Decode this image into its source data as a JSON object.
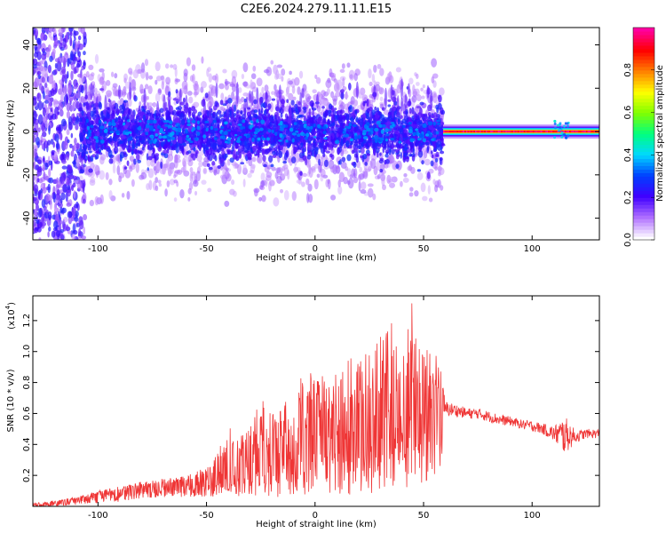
{
  "title": "C2E6.2024.279.11.11.E15",
  "chart_data": [
    {
      "type": "heatmap",
      "name": "spectrogram",
      "xlabel": "Height of straight line (km)",
      "ylabel": "Frequency (Hz)",
      "xlim": [
        -130,
        131
      ],
      "ylim": [
        -50,
        48
      ],
      "x_ticks": [
        -100,
        -50,
        0,
        50,
        100
      ],
      "y_ticks": [
        -40,
        -20,
        0,
        20,
        40
      ],
      "grid": false,
      "description_of_field": [
        {
          "x_range": [
            -130,
            -108
          ],
          "freq_range": [
            -50,
            48
          ],
          "level": 0.2,
          "pattern": "scattered speckle"
        },
        {
          "x_range": [
            -108,
            59
          ],
          "freq_range": [
            -20,
            20
          ],
          "level": 0.2,
          "pattern": "dense band, peaks up to 0.35 near 0 Hz"
        },
        {
          "x_range": [
            59,
            131
          ],
          "freq_range": [
            -3,
            3
          ],
          "level": 1.0,
          "pattern": "narrow line at 0 Hz"
        }
      ],
      "colorbar": {
        "label": "Normalized spectral amplitude",
        "range": [
          0,
          1
        ],
        "ticks": [
          "0.0",
          "0.2",
          "0.4",
          "0.6",
          "0.8"
        ],
        "colors": [
          "#ffffff",
          "#b070ff",
          "#4000ff",
          "#0040ff",
          "#00d8ff",
          "#00ff80",
          "#80ff00",
          "#ffff00",
          "#ff8000",
          "#ff0000",
          "#ff00a0"
        ]
      }
    },
    {
      "type": "line",
      "name": "snr",
      "xlabel": "Height of straight line (km)",
      "ylabel": "SNR (10 * v/v)",
      "y_multiplier": "(x10",
      "y_multiplier_exp": "4",
      "y_multiplier_close": ")",
      "xlim": [
        -130,
        131
      ],
      "ylim": [
        0,
        1.36
      ],
      "x_ticks": [
        -100,
        -50,
        0,
        50,
        100
      ],
      "y_ticks": [
        "0.2",
        "0.4",
        "0.6",
        "0.8",
        "1.0",
        "1.2"
      ],
      "color": "#ef3535",
      "series": [
        {
          "x": [
            -130,
            -120,
            -110,
            -100,
            -90,
            -80,
            -70,
            -60,
            -50,
            -45,
            -40,
            -35,
            -30,
            -25,
            -20,
            -15,
            -10,
            -5,
            0,
            5,
            10,
            15,
            20,
            25,
            30,
            35,
            40,
            45,
            50,
            55,
            58,
            60,
            65,
            70,
            75,
            80,
            85,
            90,
            95,
            100,
            105,
            110,
            115,
            120,
            125,
            131
          ],
          "y": [
            0.01,
            0.02,
            0.04,
            0.07,
            0.09,
            0.12,
            0.13,
            0.14,
            0.17,
            0.2,
            0.22,
            0.23,
            0.26,
            0.29,
            0.3,
            0.32,
            0.35,
            0.4,
            0.45,
            0.46,
            0.5,
            0.48,
            0.52,
            0.55,
            0.57,
            0.58,
            0.6,
            0.62,
            0.6,
            0.59,
            0.58,
            0.63,
            0.62,
            0.6,
            0.6,
            0.58,
            0.56,
            0.55,
            0.53,
            0.52,
            0.5,
            0.47,
            0.46,
            0.45,
            0.47,
            0.47
          ],
          "upper_envelope": [
            0.02,
            0.04,
            0.06,
            0.1,
            0.13,
            0.16,
            0.18,
            0.2,
            0.25,
            0.38,
            0.55,
            0.45,
            0.5,
            0.7,
            0.6,
            0.65,
            0.78,
            0.85,
            0.88,
            0.85,
            0.9,
            0.95,
            0.98,
            1.05,
            1.12,
            1.2,
            1.1,
            1.35,
            1.0,
            1.05,
            0.9,
            0.68,
            0.66,
            0.64,
            0.63,
            0.62,
            0.6,
            0.58,
            0.56,
            0.55,
            0.53,
            0.52,
            0.6,
            0.5,
            0.5,
            0.5
          ],
          "lower_envelope": [
            0.0,
            0.0,
            0.01,
            0.02,
            0.03,
            0.05,
            0.06,
            0.06,
            0.06,
            0.06,
            0.07,
            0.06,
            0.07,
            0.07,
            0.06,
            0.06,
            0.07,
            0.06,
            0.07,
            0.06,
            0.07,
            0.07,
            0.08,
            0.08,
            0.1,
            0.1,
            0.12,
            0.12,
            0.15,
            0.2,
            0.25,
            0.58,
            0.58,
            0.57,
            0.56,
            0.55,
            0.53,
            0.52,
            0.5,
            0.48,
            0.46,
            0.42,
            0.35,
            0.42,
            0.44,
            0.44
          ]
        }
      ]
    }
  ]
}
